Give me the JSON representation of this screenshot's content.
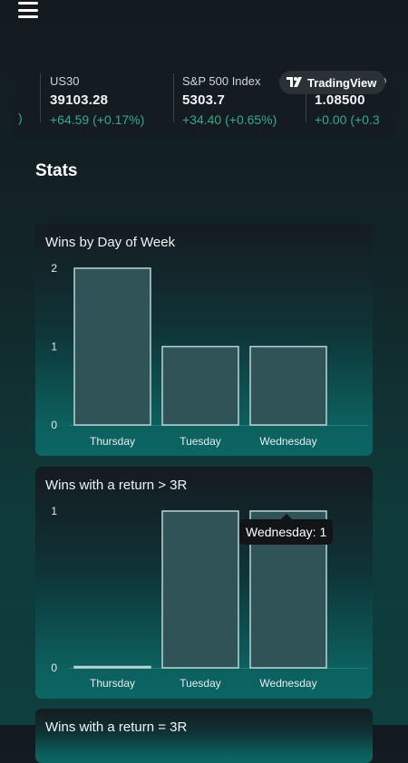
{
  "ticker": {
    "items": [
      {
        "symbol": "US30",
        "price": "39103.28",
        "change": "+64.59 (+0.17%)"
      },
      {
        "symbol": "S&P 500 Index",
        "price": "5303.7",
        "change": "+34.40 (+0.65%)"
      },
      {
        "symbol": "D",
        "price": "1.08500",
        "change": "+0.00 (+0.3"
      }
    ],
    "left_fragment": ")",
    "badge_label": "TradingView"
  },
  "page": {
    "title": "Stats"
  },
  "tooltip": {
    "text": "Wednesday: 1"
  },
  "chart_data": [
    {
      "type": "bar",
      "title": "Wins by Day of Week",
      "categories": [
        "Thursday",
        "Tuesday",
        "Wednesday"
      ],
      "values": [
        2,
        1,
        1
      ],
      "yticks": [
        "0",
        "1",
        "2"
      ],
      "ylim": [
        0,
        2
      ],
      "bar_fill": "#2f5357",
      "bar_stroke": "#b9d6d6"
    },
    {
      "type": "bar",
      "title": "Wins with a return > 3R",
      "categories": [
        "Thursday",
        "Tuesday",
        "Wednesday"
      ],
      "values": [
        0,
        1,
        1
      ],
      "yticks": [
        "0",
        "1"
      ],
      "ylim": [
        0,
        1
      ],
      "bar_fill": "#2f5357",
      "bar_stroke": "#b9d6d6"
    },
    {
      "type": "bar",
      "title": "Wins with a return = 3R"
    }
  ]
}
